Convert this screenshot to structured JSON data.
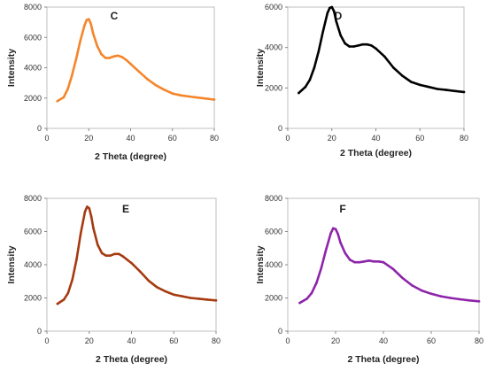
{
  "chart_data": [
    {
      "type": "line",
      "title": "C",
      "xlabel": "2 Theta (degree)",
      "ylabel": "Intensity",
      "xlim": [
        0,
        80
      ],
      "ylim": [
        0,
        8000
      ],
      "xticks": [
        0,
        20,
        40,
        60,
        80
      ],
      "yticks": [
        0,
        2000,
        4000,
        6000,
        8000
      ],
      "color": "#f5852a",
      "series": [
        {
          "x": [
            5,
            8,
            10,
            12,
            14,
            16,
            18,
            19,
            20,
            21,
            22,
            24,
            26,
            28,
            30,
            32,
            34,
            36,
            38,
            40,
            44,
            48,
            52,
            56,
            60,
            64,
            68,
            72,
            76,
            80
          ],
          "y": [
            1800,
            2050,
            2600,
            3500,
            4600,
            5800,
            6800,
            7150,
            7200,
            6900,
            6300,
            5450,
            4900,
            4650,
            4650,
            4750,
            4800,
            4700,
            4500,
            4250,
            3750,
            3250,
            2850,
            2550,
            2300,
            2180,
            2100,
            2030,
            1970,
            1900
          ]
        }
      ]
    },
    {
      "type": "line",
      "title": "D",
      "xlabel": "2 Theta (degree)",
      "ylabel": "Intensity",
      "xlim": [
        0,
        80
      ],
      "ylim": [
        0,
        6000
      ],
      "xticks": [
        0,
        20,
        40,
        60,
        80
      ],
      "yticks": [
        0,
        2000,
        4000,
        6000
      ],
      "color": "#000000",
      "series": [
        {
          "x": [
            5,
            8,
            10,
            12,
            14,
            16,
            18,
            19,
            20,
            21,
            22,
            24,
            26,
            28,
            30,
            32,
            34,
            36,
            38,
            40,
            44,
            48,
            52,
            56,
            60,
            64,
            68,
            72,
            76,
            80
          ],
          "y": [
            1750,
            2050,
            2400,
            3000,
            3800,
            4800,
            5700,
            5950,
            6000,
            5800,
            5300,
            4600,
            4200,
            4050,
            4050,
            4100,
            4150,
            4150,
            4100,
            3950,
            3550,
            3000,
            2600,
            2300,
            2150,
            2050,
            1950,
            1900,
            1850,
            1800
          ]
        }
      ]
    },
    {
      "type": "line",
      "title": "E",
      "xlabel": "2 Theta (degree)",
      "ylabel": "Intensity",
      "xlim": [
        0,
        80
      ],
      "ylim": [
        0,
        8000
      ],
      "xticks": [
        0,
        20,
        40,
        60,
        80
      ],
      "yticks": [
        0,
        2000,
        4000,
        6000,
        8000
      ],
      "color": "#a63a10",
      "series": [
        {
          "x": [
            5,
            8,
            10,
            12,
            14,
            16,
            18,
            19,
            20,
            21,
            22,
            24,
            26,
            28,
            30,
            32,
            34,
            36,
            38,
            40,
            44,
            48,
            52,
            56,
            60,
            64,
            68,
            72,
            76,
            80
          ],
          "y": [
            1650,
            1900,
            2300,
            3100,
            4300,
            5900,
            7200,
            7500,
            7400,
            6900,
            6200,
            5200,
            4700,
            4550,
            4550,
            4650,
            4650,
            4500,
            4300,
            4100,
            3600,
            3050,
            2650,
            2400,
            2200,
            2100,
            2000,
            1950,
            1900,
            1850
          ]
        }
      ]
    },
    {
      "type": "line",
      "title": "F",
      "xlabel": "2 Theta (degree)",
      "ylabel": "Intensity",
      "xlim": [
        0,
        80
      ],
      "ylim": [
        0,
        8000
      ],
      "xticks": [
        0,
        20,
        40,
        60,
        80
      ],
      "yticks": [
        0,
        2000,
        4000,
        6000,
        8000
      ],
      "color": "#8e24aa",
      "series": [
        {
          "x": [
            5,
            8,
            10,
            12,
            14,
            16,
            18,
            19,
            20,
            21,
            22,
            24,
            26,
            28,
            30,
            32,
            34,
            36,
            38,
            40,
            44,
            48,
            52,
            56,
            60,
            64,
            68,
            72,
            76,
            80
          ],
          "y": [
            1700,
            1950,
            2300,
            2900,
            3800,
            4900,
            5900,
            6200,
            6150,
            5850,
            5350,
            4700,
            4300,
            4150,
            4150,
            4200,
            4250,
            4200,
            4200,
            4150,
            3750,
            3200,
            2750,
            2450,
            2250,
            2100,
            2000,
            1920,
            1850,
            1800
          ]
        }
      ]
    }
  ]
}
